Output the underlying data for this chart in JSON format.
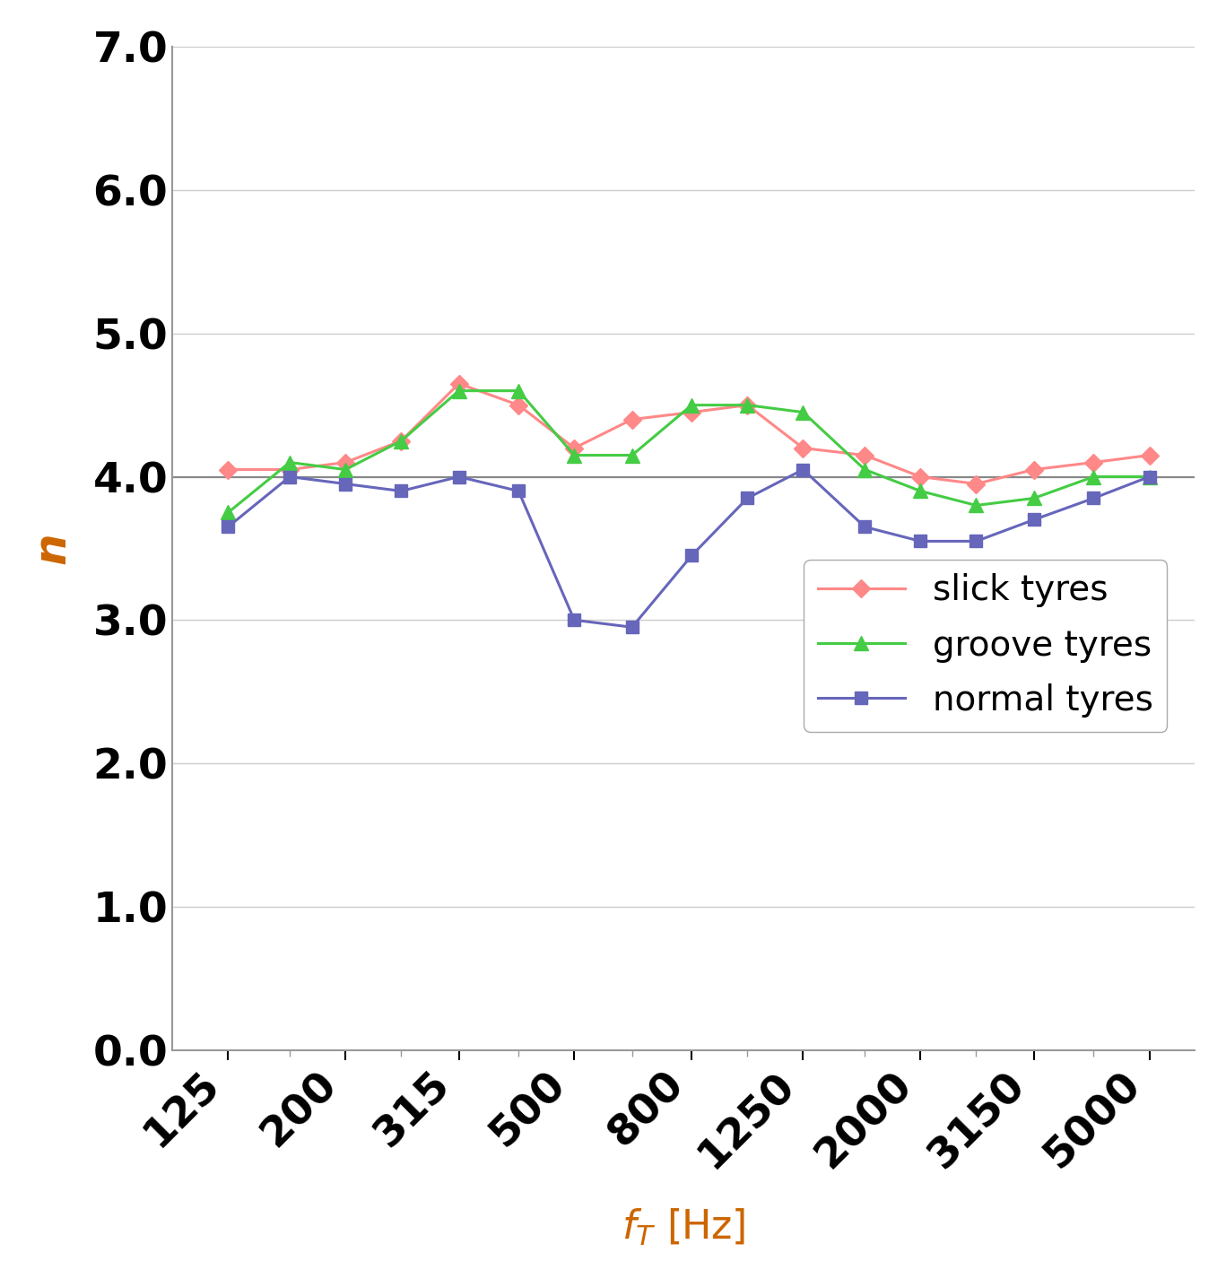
{
  "x_data": [
    125,
    160,
    200,
    250,
    315,
    400,
    500,
    630,
    800,
    1000,
    1250,
    1600,
    2000,
    2500,
    3150,
    4000,
    5000
  ],
  "x_tick_labels": [
    "125",
    "200",
    "315",
    "500",
    "800",
    "1250",
    "2000",
    "3150",
    "5000"
  ],
  "x_tick_positions": [
    125,
    200,
    315,
    500,
    800,
    1250,
    2000,
    3150,
    5000
  ],
  "slick_tyres": [
    4.05,
    4.05,
    4.1,
    4.25,
    4.65,
    4.5,
    4.2,
    4.4,
    4.45,
    4.5,
    4.2,
    4.15,
    4.0,
    3.95,
    4.05,
    4.1,
    4.15
  ],
  "groove_tyres": [
    3.75,
    4.1,
    4.05,
    4.25,
    4.6,
    4.6,
    4.15,
    4.15,
    4.5,
    4.5,
    4.45,
    4.05,
    3.9,
    3.8,
    3.85,
    4.0,
    4.0
  ],
  "normal_tyres": [
    3.65,
    4.0,
    3.95,
    3.9,
    4.0,
    3.9,
    3.0,
    2.95,
    3.45,
    3.85,
    4.05,
    3.65,
    3.55,
    3.55,
    3.7,
    3.85,
    4.0
  ],
  "slick_color": "#ff8888",
  "groove_color": "#44cc44",
  "normal_color": "#6666bb",
  "ylabel": "n",
  "xlabel_math": "$f_T$",
  "xlabel_unit": " [Hz]",
  "ylim": [
    0.0,
    7.0
  ],
  "yticks": [
    0.0,
    1.0,
    2.0,
    3.0,
    4.0,
    5.0,
    6.0,
    7.0
  ],
  "background_color": "#ffffff",
  "legend_labels": [
    "slick tyres",
    "groove tyres",
    "normal tyres"
  ],
  "hline_y": 4.0,
  "hline_color": "#888888",
  "tick_label_color": "#000000",
  "axis_label_color": "#cc6600",
  "grid_color": "#cccccc"
}
